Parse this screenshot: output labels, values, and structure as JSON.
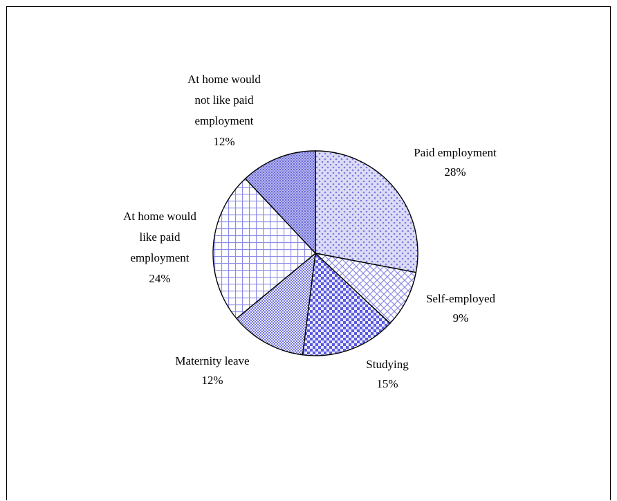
{
  "chart_data": {
    "type": "pie",
    "start_angle_deg": 0,
    "direction": "clockwise",
    "slices": [
      {
        "label": "Paid employment",
        "value": 28,
        "value_label": "28%",
        "pattern": "dots",
        "color": "#7b7bdc"
      },
      {
        "label": "Self-employed",
        "value": 9,
        "value_label": "9%",
        "pattern": "diagonal-grid",
        "color": "#7b7bdc"
      },
      {
        "label": "Studying",
        "value": 15,
        "value_label": "15%",
        "pattern": "checker",
        "color": "#5a5ae0"
      },
      {
        "label": "Maternity leave",
        "value": 12,
        "value_label": "12%",
        "pattern": "fine-checker",
        "color": "#7878d8"
      },
      {
        "label": "At home would like paid employment",
        "value": 24,
        "value_label": "24%",
        "pattern": "grid",
        "color": "#8c8ce6"
      },
      {
        "label": "At home would not like paid employment",
        "value": 12,
        "value_label": "12%",
        "pattern": "dense-dots",
        "color": "#6a6ad6"
      }
    ],
    "label_lines": [
      [
        "Paid employment",
        "28%"
      ],
      [
        "Self-employed",
        "9%"
      ],
      [
        "Studying",
        "15%"
      ],
      [
        "Maternity leave",
        "12%"
      ],
      [
        "At home would",
        "like paid",
        "employment",
        "24%"
      ],
      [
        "At home would",
        "not like paid",
        "employment",
        "12%"
      ]
    ],
    "title": "",
    "legend": "none"
  }
}
